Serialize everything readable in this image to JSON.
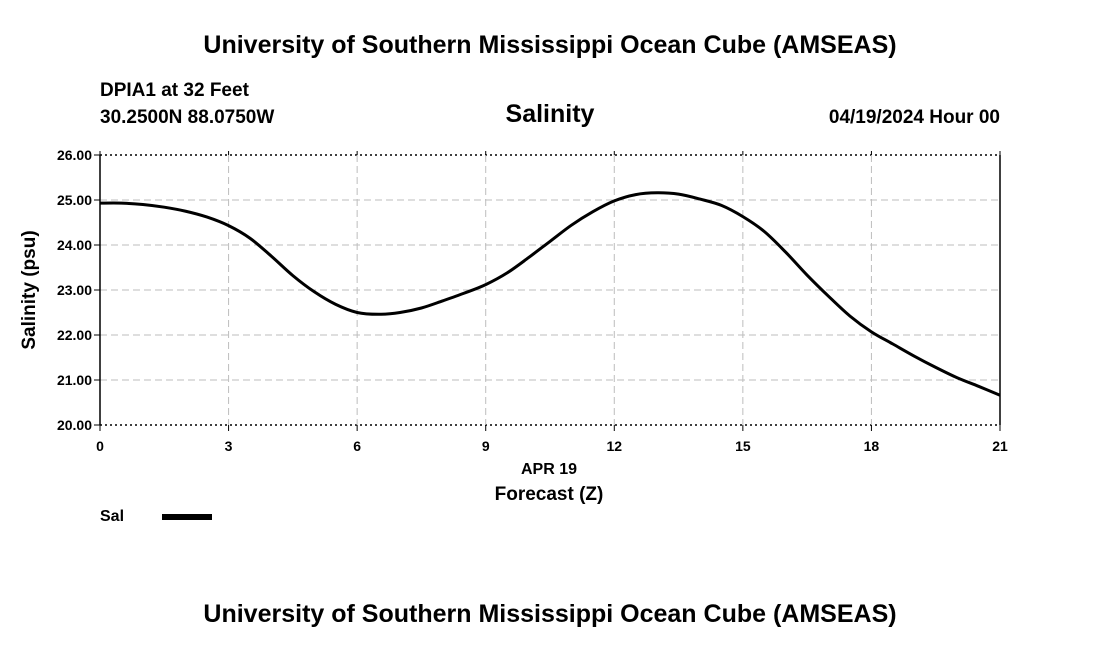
{
  "header": {
    "title": "University of Southern Mississippi Ocean Cube (AMSEAS)",
    "station": "DPIA1 at 32 Feet",
    "coordinates": "30.2500N  88.0750W",
    "chart_title": "Salinity",
    "datetime": "04/19/2024 Hour 00"
  },
  "footer": {
    "title": "University of Southern Mississippi Ocean Cube (AMSEAS)"
  },
  "legend": {
    "label": "Sal",
    "color": "#000000"
  },
  "chart_data": {
    "type": "line",
    "title": "Salinity",
    "xlabel": "Forecast (Z)",
    "xlabel_date": "APR 19",
    "ylabel": "Salinity (psu)",
    "xlim": [
      0,
      21
    ],
    "ylim": [
      20,
      26
    ],
    "x_ticks": [
      0,
      3,
      6,
      9,
      12,
      15,
      18,
      21
    ],
    "x_tick_labels": [
      "0",
      "3",
      "6",
      "9",
      "12",
      "15",
      "18",
      "21"
    ],
    "y_ticks": [
      20,
      21,
      22,
      23,
      24,
      25,
      26
    ],
    "y_tick_labels": [
      "20.00",
      "21.00",
      "22.00",
      "23.00",
      "24.00",
      "25.00",
      "26.00"
    ],
    "grid": true,
    "series": [
      {
        "name": "Sal",
        "color": "#000000",
        "x": [
          0,
          0.5,
          1,
          1.5,
          2,
          2.5,
          3,
          3.5,
          4,
          4.5,
          5,
          5.5,
          6,
          6.5,
          7,
          7.5,
          8,
          8.5,
          9,
          9.5,
          10,
          10.5,
          11,
          11.5,
          12,
          12.5,
          13,
          13.5,
          14,
          14.5,
          15,
          15.5,
          16,
          16.5,
          17,
          17.5,
          18,
          18.5,
          19,
          19.5,
          20,
          20.5,
          21
        ],
        "values": [
          24.93,
          24.93,
          24.9,
          24.84,
          24.75,
          24.62,
          24.43,
          24.15,
          23.75,
          23.32,
          22.96,
          22.68,
          22.5,
          22.46,
          22.5,
          22.6,
          22.76,
          22.93,
          23.12,
          23.38,
          23.72,
          24.08,
          24.44,
          24.74,
          24.98,
          25.12,
          25.16,
          25.13,
          25.02,
          24.88,
          24.63,
          24.3,
          23.84,
          23.33,
          22.86,
          22.42,
          22.07,
          21.8,
          21.53,
          21.28,
          21.05,
          20.86,
          20.66
        ]
      }
    ]
  }
}
